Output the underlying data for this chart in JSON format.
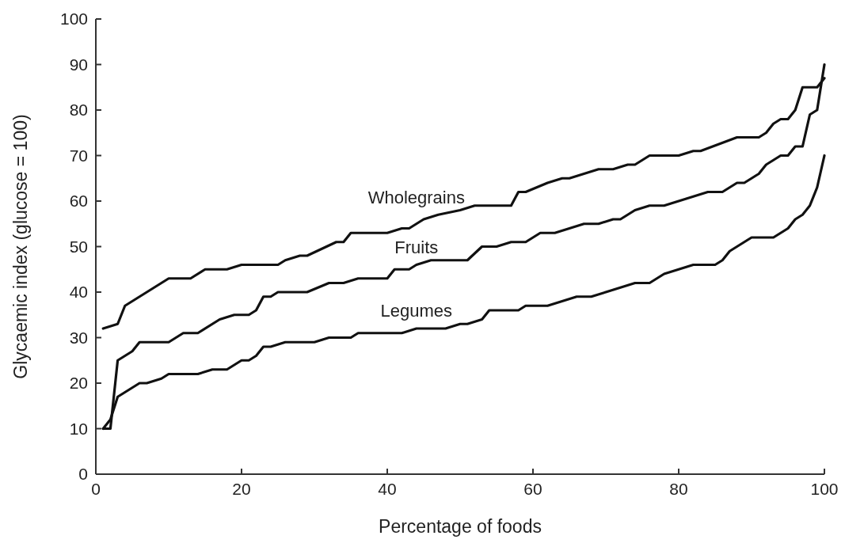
{
  "chart_data": {
    "type": "line",
    "xlabel": "Percentage of foods",
    "ylabel": "Glycaemic index (glucose = 100)",
    "xlim": [
      0,
      100
    ],
    "xticks": [
      0,
      20,
      40,
      60,
      80,
      100
    ],
    "ylim": [
      0,
      100
    ],
    "yticks": [
      0,
      10,
      20,
      30,
      40,
      50,
      60,
      70,
      80,
      90,
      100
    ],
    "grid": false,
    "legend": false,
    "marker": "none",
    "line_style": "solid",
    "series": [
      {
        "name": "Wholegrains",
        "color": "#111111",
        "x": [
          1,
          3,
          4,
          6,
          7,
          9,
          10,
          13,
          15,
          18,
          20,
          25,
          26,
          28,
          29,
          33,
          34,
          35,
          40,
          42,
          43,
          45,
          47,
          50,
          52,
          57,
          58,
          59,
          62,
          64,
          65,
          67,
          69,
          71,
          73,
          74,
          76,
          80,
          82,
          83,
          88,
          91,
          92,
          93,
          94,
          95,
          96,
          97,
          99,
          100
        ],
        "values": [
          32,
          33,
          37,
          39,
          40,
          42,
          43,
          43,
          45,
          45,
          46,
          46,
          47,
          48,
          48,
          51,
          51,
          53,
          53,
          54,
          54,
          56,
          57,
          58,
          59,
          59,
          62,
          62,
          64,
          65,
          65,
          66,
          67,
          67,
          68,
          68,
          70,
          70,
          71,
          71,
          74,
          74,
          75,
          77,
          78,
          78,
          80,
          85,
          85,
          87
        ]
      },
      {
        "name": "Fruits",
        "color": "#111111",
        "x": [
          1,
          2,
          3,
          5,
          6,
          10,
          12,
          14,
          17,
          19,
          21,
          22,
          23,
          24,
          25,
          29,
          32,
          34,
          36,
          40,
          41,
          43,
          44,
          46,
          51,
          53,
          55,
          57,
          59,
          61,
          63,
          65,
          67,
          69,
          71,
          72,
          74,
          76,
          78,
          80,
          82,
          84,
          86,
          88,
          89,
          91,
          92,
          93,
          94,
          95,
          96,
          97,
          98,
          99,
          100
        ],
        "values": [
          10,
          10,
          25,
          27,
          29,
          29,
          31,
          31,
          34,
          35,
          35,
          36,
          39,
          39,
          40,
          40,
          42,
          42,
          43,
          43,
          45,
          45,
          46,
          47,
          47,
          50,
          50,
          51,
          51,
          53,
          53,
          54,
          55,
          55,
          56,
          56,
          58,
          59,
          59,
          60,
          61,
          62,
          62,
          64,
          64,
          66,
          68,
          69,
          70,
          70,
          72,
          72,
          79,
          80,
          90
        ]
      },
      {
        "name": "Legumes",
        "color": "#111111",
        "x": [
          1,
          2,
          3,
          4,
          6,
          7,
          9,
          10,
          14,
          16,
          18,
          20,
          21,
          22,
          23,
          24,
          26,
          30,
          32,
          35,
          36,
          42,
          44,
          48,
          50,
          51,
          53,
          54,
          58,
          59,
          62,
          64,
          66,
          68,
          70,
          72,
          74,
          76,
          78,
          80,
          82,
          85,
          86,
          87,
          88,
          89,
          90,
          93,
          94,
          95,
          96,
          97,
          98,
          99,
          100
        ],
        "values": [
          10,
          12,
          17,
          18,
          20,
          20,
          21,
          22,
          22,
          23,
          23,
          25,
          25,
          26,
          28,
          28,
          29,
          29,
          30,
          30,
          31,
          31,
          32,
          32,
          33,
          33,
          34,
          36,
          36,
          37,
          37,
          38,
          39,
          39,
          40,
          41,
          42,
          42,
          44,
          45,
          46,
          46,
          47,
          49,
          50,
          51,
          52,
          52,
          53,
          54,
          56,
          57,
          59,
          63,
          70
        ]
      }
    ]
  }
}
